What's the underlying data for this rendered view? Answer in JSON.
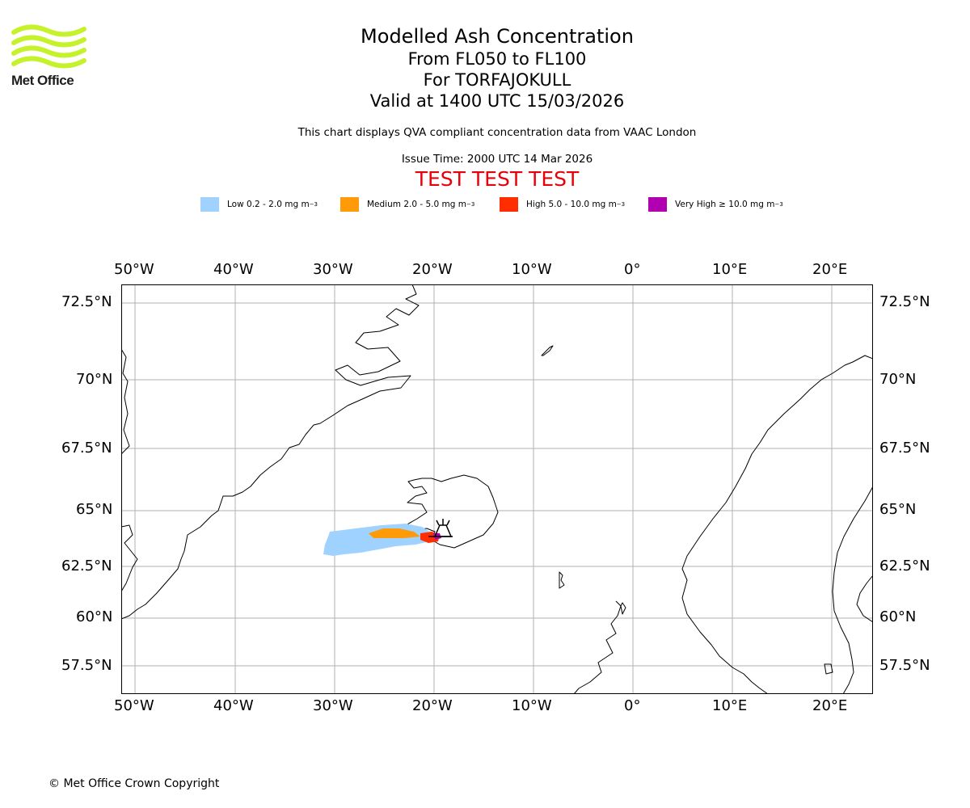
{
  "logo": {
    "text": "Met Office",
    "color": "#c6f22b"
  },
  "title": {
    "main": "Modelled Ash Concentration",
    "levels": "From FL050 to FL100",
    "volcano": "For TORFAJOKULL",
    "valid": "Valid at 1400 UTC 15/03/2026"
  },
  "description": "This chart displays QVA compliant concentration data from VAAC London",
  "issue_time": "Issue Time: 2000 UTC 14 Mar 2026",
  "test_banner": "TEST TEST TEST",
  "legend": [
    {
      "label": "Low 0.2 - 2.0 mg m",
      "sup": "−3",
      "color": "#a0d2ff"
    },
    {
      "label": "Medium 2.0 - 5.0 mg m",
      "sup": "−3",
      "color": "#ff9b09"
    },
    {
      "label": "High 5.0 - 10.0 mg m",
      "sup": "−3",
      "color": "#ff2d00"
    },
    {
      "label": "Very High  ≥  10.0 mg m",
      "sup": "−3",
      "color": "#b000b0"
    }
  ],
  "axes": {
    "lon_labels": [
      "50°W",
      "40°W",
      "30°W",
      "20°W",
      "10°W",
      "0°",
      "10°E",
      "20°E"
    ],
    "lat_labels": [
      "72.5°N",
      "70°N",
      "67.5°N",
      "65°N",
      "62.5°N",
      "60°N",
      "57.5°N"
    ]
  },
  "copyright": "© Met Office Crown Copyright"
}
